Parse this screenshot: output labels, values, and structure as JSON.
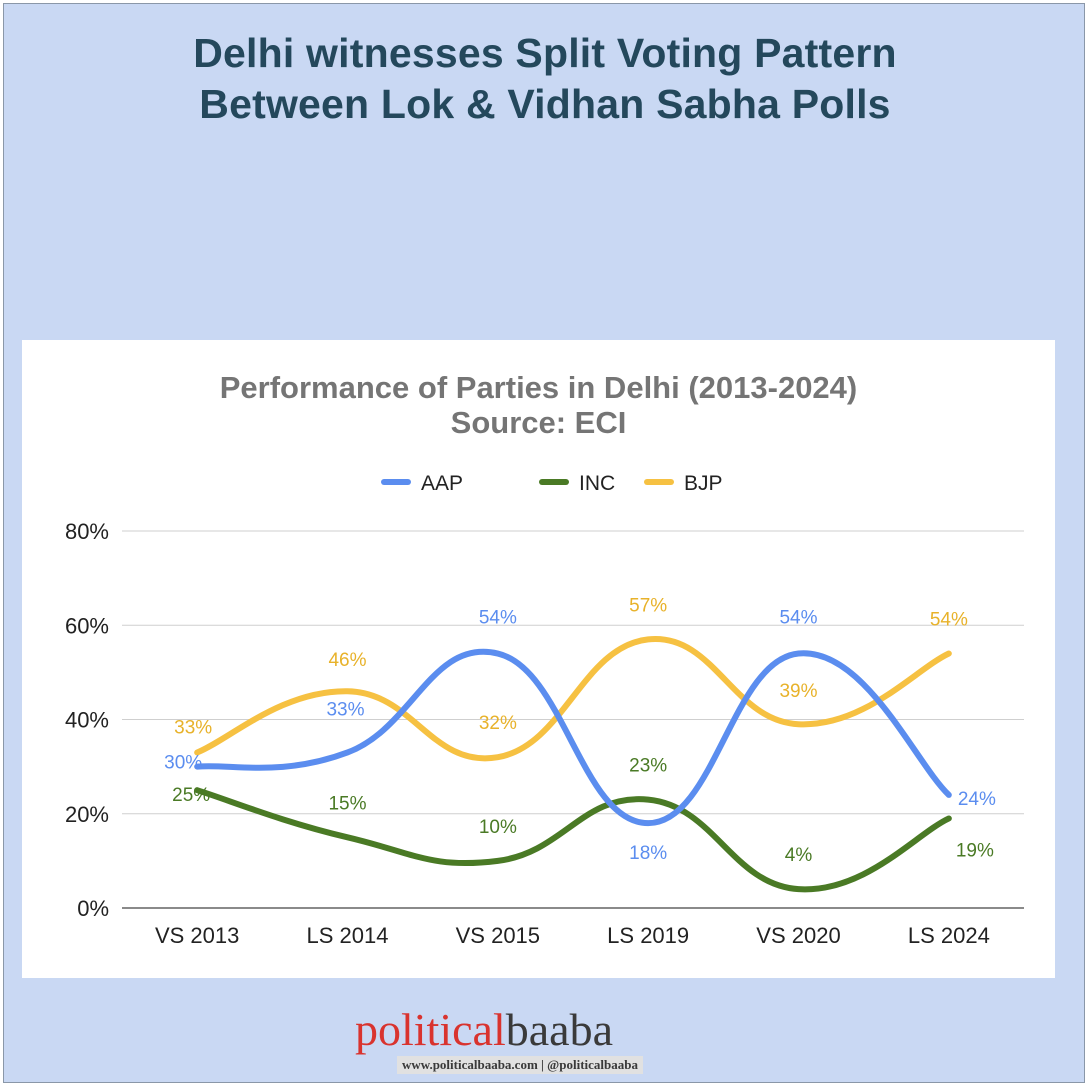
{
  "headline": {
    "line1": "Delhi witnesses Split Voting Pattern",
    "line2": "Between Lok & Vidhan Sabha Polls"
  },
  "chart_data": {
    "type": "line",
    "title": "Performance of Parties in Delhi (2013-2024)",
    "subtitle": "Source: ECI",
    "categories": [
      "VS 2013",
      "LS 2014",
      "VS 2015",
      "LS 2019",
      "VS 2020",
      "LS 2024"
    ],
    "series": [
      {
        "name": "AAP",
        "color": "#5b8def",
        "values": [
          30,
          33,
          54,
          18,
          54,
          24
        ],
        "labels": [
          "30%",
          "33%",
          "54%",
          "18%",
          "54%",
          "24%"
        ]
      },
      {
        "name": "INC",
        "color": "#4a7a25",
        "values": [
          25,
          15,
          10,
          23,
          4,
          19
        ],
        "labels": [
          "25%",
          "15%",
          "10%",
          "23%",
          "4%",
          "19%"
        ]
      },
      {
        "name": "BJP",
        "color": "#f6c142",
        "values": [
          33,
          46,
          32,
          57,
          39,
          54
        ],
        "labels": [
          "33%",
          "46%",
          "32%",
          "57%",
          "39%",
          "54%"
        ]
      }
    ],
    "yticks": [
      "0%",
      "20%",
      "40%",
      "60%",
      "80%"
    ],
    "ylim": [
      0,
      80
    ],
    "grid": true,
    "legend_position": "top"
  },
  "brand": {
    "name_part1": "political",
    "name_part2": "baaba",
    "sub": "www.politicalbaaba.com | @politicalbaaba"
  }
}
